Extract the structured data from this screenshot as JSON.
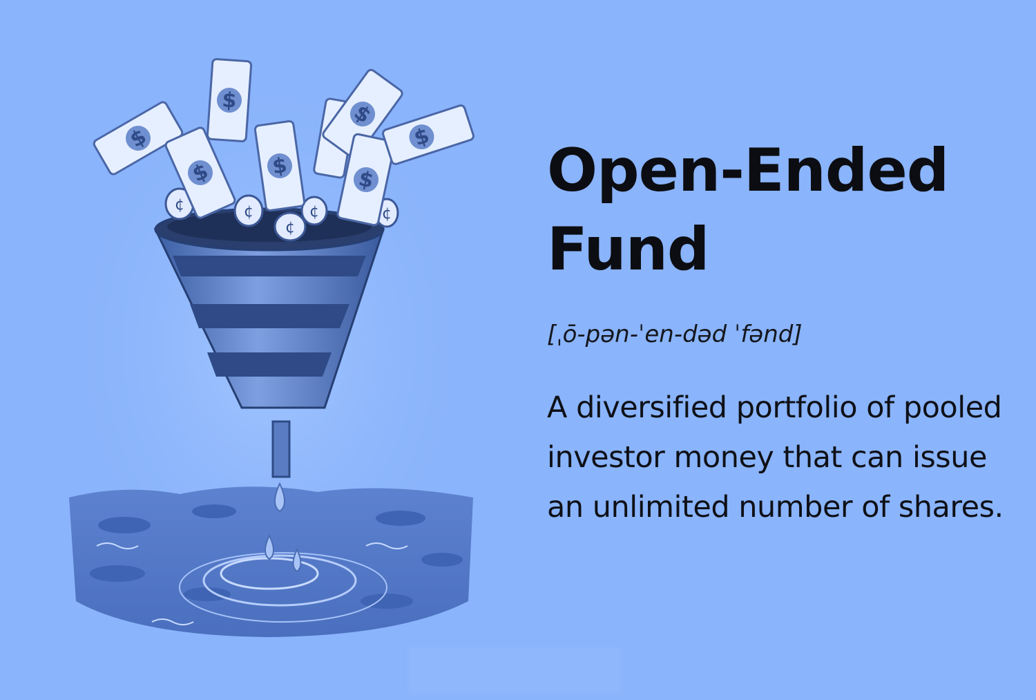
{
  "term": {
    "title_line1": "Open-Ended",
    "title_line2": "Fund",
    "pronunciation": "[ˌō-pən-ˈen-dəd ˈfənd]",
    "definition": "A diversified portfolio of pooled investor money that can issue an unlimited number of shares."
  },
  "illustration": {
    "description_icon": "funnel-money-icon",
    "banknote_symbol": "$",
    "coin_symbol": "¢"
  },
  "colors": {
    "background": "#8ab4fb",
    "text": "#0c0d12",
    "funnel_dark": "#2f4f8f",
    "funnel_light": "#6c90d6",
    "water": "#4f74c4",
    "banknote": "#e6efff"
  }
}
